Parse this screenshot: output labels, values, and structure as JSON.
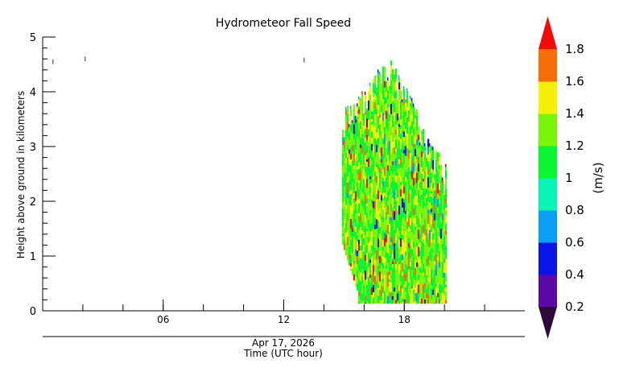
{
  "chart_data": {
    "type": "heatmap",
    "title": "Hydrometeor Fall Speed",
    "xlabel": "Time (UTC hour)",
    "date_label": "Apr 17, 2026",
    "ylabel": "Height above ground in kilometers",
    "colorbar_label": "(m/s)",
    "xlim": [
      0,
      24
    ],
    "ylim": [
      0,
      5
    ],
    "x_ticks": [
      {
        "value": 6,
        "label": "06"
      },
      {
        "value": 12,
        "label": "12"
      },
      {
        "value": 18,
        "label": "18"
      }
    ],
    "x_minor_ticks": [
      2,
      4,
      6,
      8,
      10,
      12,
      14,
      16,
      18,
      20,
      22
    ],
    "y_ticks": [
      {
        "value": 0,
        "label": "0"
      },
      {
        "value": 1,
        "label": "1"
      },
      {
        "value": 2,
        "label": "2"
      },
      {
        "value": 3,
        "label": "3"
      },
      {
        "value": 4,
        "label": "4"
      },
      {
        "value": 5,
        "label": "5"
      }
    ],
    "colorbar": {
      "min": 0.2,
      "max": 1.8,
      "step": 0.2,
      "labels": [
        "1.8",
        "1.6",
        "1.4",
        "1.2",
        "1",
        "0.8",
        "0.6",
        "0.4",
        "0.2"
      ],
      "colors": [
        "#5a0aa6",
        "#0a14e6",
        "#0a9ef5",
        "#0af5b5",
        "#0af532",
        "#78f50a",
        "#f5f00a",
        "#f56e0a"
      ],
      "under_color": "#2d0a3c",
      "over_color": "#f50a0a"
    },
    "data_region": {
      "time_start": 14.9,
      "time_end": 20.1,
      "height_top_start": 3.7,
      "height_top_peak": 4.65,
      "height_bottom": 0.13,
      "dominant_range": [
        1.0,
        1.5
      ]
    },
    "isolated_points": [
      {
        "time": 0.5,
        "height": 4.55
      },
      {
        "time": 2.1,
        "height": 4.6
      },
      {
        "time": 13.0,
        "height": 4.58
      }
    ]
  }
}
